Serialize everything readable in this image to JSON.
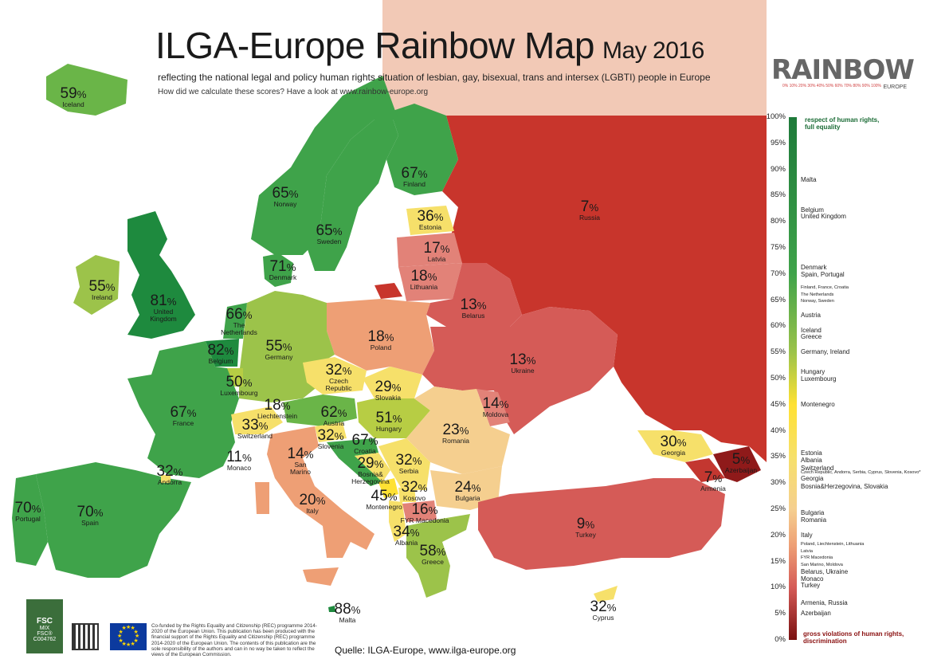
{
  "header": {
    "title": "ILGA-Europe Rainbow Map",
    "date": "May 2016",
    "subtitle": "reflecting the national legal and policy human rights situation of lesbian, gay, bisexual, trans and intersex (LGBTI) people in Europe",
    "howto": "How did we calculate these scores? Have a look at www.rainbow-europe.org"
  },
  "logo": {
    "word": "RAINBOW",
    "sub": "EUROPE",
    "scale": "0%  10%  20%  30%  40%  50%  60%  70%  80%  90%  100%"
  },
  "colors": {
    "sea": "#ffffff",
    "outside": "#f2c9b6",
    "russia": "#c8352c",
    "s80": "#1e8a3e",
    "s70": "#3fa34a",
    "s60": "#6ab548",
    "s55": "#9cc34a",
    "s50": "#b7cd44",
    "s45": "#ffe133",
    "s30": "#f6e06a",
    "s25": "#f5cf8f",
    "s20": "#ee9f75",
    "s15": "#e28278",
    "s10": "#d55b57",
    "s5": "#c33730",
    "s0": "#8f1a1a"
  },
  "countries": [
    {
      "name": "Iceland",
      "score": "59"
    },
    {
      "name": "Norway",
      "score": "65"
    },
    {
      "name": "Sweden",
      "score": "65"
    },
    {
      "name": "Finland",
      "score": "67"
    },
    {
      "name": "Russia",
      "score": "7"
    },
    {
      "name": "Estonia",
      "score": "36"
    },
    {
      "name": "Latvia",
      "score": "17"
    },
    {
      "name": "Lithuania",
      "score": "18"
    },
    {
      "name": "Denmark",
      "score": "71"
    },
    {
      "name": "Ireland",
      "score": "55"
    },
    {
      "name": "United\nKingdom",
      "score": "81"
    },
    {
      "name": "The\nNetherlands",
      "score": "66"
    },
    {
      "name": "Belgium",
      "score": "82"
    },
    {
      "name": "Luxembourg",
      "score": "50"
    },
    {
      "name": "Germany",
      "score": "55"
    },
    {
      "name": "Poland",
      "score": "18"
    },
    {
      "name": "Belarus",
      "score": "13"
    },
    {
      "name": "Ukraine",
      "score": "13"
    },
    {
      "name": "Czech\nRepublic",
      "score": "32"
    },
    {
      "name": "Slovakia",
      "score": "29"
    },
    {
      "name": "Moldova",
      "score": "14"
    },
    {
      "name": "France",
      "score": "67"
    },
    {
      "name": "Liechtenstein",
      "score": "18"
    },
    {
      "name": "Austria",
      "score": "62"
    },
    {
      "name": "Hungary",
      "score": "51"
    },
    {
      "name": "Romania",
      "score": "23"
    },
    {
      "name": "Switzerland",
      "score": "33"
    },
    {
      "name": "Slovenia",
      "score": "32"
    },
    {
      "name": "Croatia",
      "score": "67"
    },
    {
      "name": "Monaco",
      "score": "11"
    },
    {
      "name": "San\nMarino",
      "score": "14"
    },
    {
      "name": "Bosnia&\nHerzegovina",
      "score": "29"
    },
    {
      "name": "Serbia",
      "score": "32"
    },
    {
      "name": "Georgia",
      "score": "30"
    },
    {
      "name": "Azerbaijan",
      "score": "5"
    },
    {
      "name": "Armenia",
      "score": "7"
    },
    {
      "name": "Andorra",
      "score": "32"
    },
    {
      "name": "Kosovo",
      "score": "32"
    },
    {
      "name": "Bulgaria",
      "score": "24"
    },
    {
      "name": "Montenegro",
      "score": "45"
    },
    {
      "name": "Italy",
      "score": "20"
    },
    {
      "name": "FYR Macedonia",
      "score": "16"
    },
    {
      "name": "Portugal",
      "score": "70"
    },
    {
      "name": "Spain",
      "score": "70"
    },
    {
      "name": "Turkey",
      "score": "9"
    },
    {
      "name": "Albania",
      "score": "34"
    },
    {
      "name": "Greece",
      "score": "58"
    },
    {
      "name": "Malta",
      "score": "88"
    },
    {
      "name": "Cyprus",
      "score": "32"
    }
  ],
  "legend": {
    "top_label": "respect of human rights,\nfull equality",
    "bottom_label": "gross violations of human rights,\ndiscrimination",
    "ticks": [
      "100%",
      "95%",
      "90%",
      "85%",
      "80%",
      "75%",
      "70%",
      "65%",
      "60%",
      "55%",
      "50%",
      "45%",
      "40%",
      "35%",
      "30%",
      "25%",
      "20%",
      "15%",
      "10%",
      "5%",
      "0%"
    ],
    "entries": [
      {
        "text": "Malta",
        "at": 88
      },
      {
        "text": "Belgium\nUnited Kingdom",
        "at": 81.5
      },
      {
        "text": "Denmark\nSpain, Portugal",
        "at": 70.5
      },
      {
        "text": "Finland, France, Croatia\nThe Netherlands\nNorway, Sweden",
        "at": 66
      },
      {
        "text": "Austria",
        "at": 62
      },
      {
        "text": "Iceland\nGreece",
        "at": 58.5
      },
      {
        "text": "Germany, Ireland",
        "at": 55
      },
      {
        "text": "Hungary\nLuxembourg",
        "at": 50.5
      },
      {
        "text": "Montenegro",
        "at": 45
      },
      {
        "text": "Estonia\nAlbania",
        "at": 35
      },
      {
        "text": "Switzerland",
        "at": 32.8
      },
      {
        "text": "Czech Republic, Andorra, Serbia, Cyprus, Slovenia, Kosovo*",
        "at": 32
      },
      {
        "text": "Georgia",
        "at": 30.7
      },
      {
        "text": "Bosnia&Herzegovina, Slovakia",
        "at": 29.3
      },
      {
        "text": "Bulgaria\nRomania",
        "at": 23.5
      },
      {
        "text": "Italy",
        "at": 20
      },
      {
        "text": "Poland, Liechtenstein, Lithuania\nLatvia\nFYR Macedonia\nSan Marino, Moldova",
        "at": 16.3
      },
      {
        "text": "Belarus, Ukraine\nMonaco\nTurkey",
        "at": 11.6
      },
      {
        "text": "Armenia, Russia",
        "at": 7
      },
      {
        "text": "Azerbaijan",
        "at": 5
      }
    ]
  },
  "footer": {
    "source": "Quelle: ILGA-Europe, www.ilga-europe.org",
    "fsc_label": "FSC",
    "fsc_mix": "MIX",
    "fsc_code": "FSC® C004762",
    "funding": "Co-funded by the Rights Equality and Citizenship (REC) programme 2014-2020 of the European Union. This publication has been produced with the financial support of the Rights Equality and Citizenship (REC) programme 2014-2020 of the European Union. The contents of this publication are the sole responsibility of the authors and can in no way be taken to reflect the views of the European Commission."
  }
}
